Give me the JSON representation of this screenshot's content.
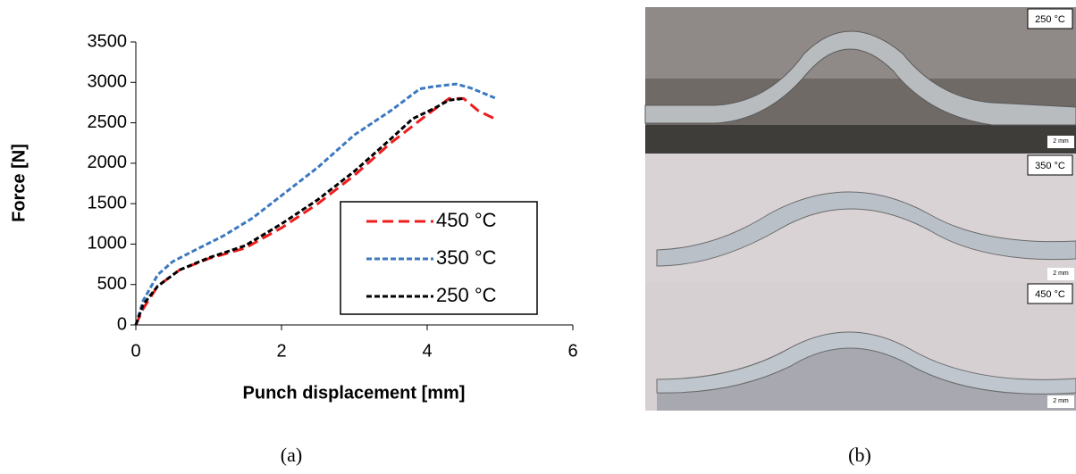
{
  "chart_data": {
    "type": "line",
    "xlabel": "Punch displacement [mm]",
    "ylabel": "Force [N]",
    "xlim": [
      0,
      6
    ],
    "xticks": [
      0,
      2,
      4,
      6
    ],
    "ylim": [
      0,
      3500
    ],
    "yticks": [
      0,
      500,
      1000,
      1500,
      2000,
      2500,
      3000,
      3500
    ],
    "series": [
      {
        "name": "450 °C",
        "color": "#ee1c1c",
        "x": [
          0,
          0.1,
          0.3,
          0.6,
          1,
          1.5,
          2,
          2.5,
          3,
          3.5,
          4,
          4.3,
          4.5,
          4.7,
          4.95
        ],
        "values": [
          0,
          200,
          480,
          680,
          820,
          950,
          1200,
          1500,
          1850,
          2250,
          2600,
          2800,
          2800,
          2650,
          2540
        ]
      },
      {
        "name": "350 °C",
        "color": "#3b78c0",
        "x": [
          0,
          0.1,
          0.3,
          0.5,
          0.8,
          1.2,
          1.6,
          2,
          2.5,
          3,
          3.5,
          3.9,
          4.1,
          4.4,
          4.6,
          4.95
        ],
        "values": [
          0,
          300,
          620,
          780,
          920,
          1100,
          1320,
          1600,
          1950,
          2350,
          2650,
          2920,
          2950,
          2980,
          2930,
          2800
        ]
      },
      {
        "name": "250 °C",
        "color": "#000000",
        "x": [
          0,
          0.1,
          0.3,
          0.6,
          1,
          1.5,
          2,
          2.5,
          3,
          3.5,
          3.8,
          4.1,
          4.3,
          4.5
        ],
        "values": [
          0,
          250,
          480,
          680,
          830,
          980,
          1250,
          1550,
          1900,
          2300,
          2550,
          2680,
          2780,
          2800
        ]
      }
    ]
  },
  "images": {
    "labels": [
      "250 °C",
      "350 °C",
      "450 °C"
    ],
    "scale_bars": [
      "2 mm",
      "2 mm",
      "2 mm"
    ]
  },
  "captions": [
    "(a)",
    "(b)"
  ]
}
